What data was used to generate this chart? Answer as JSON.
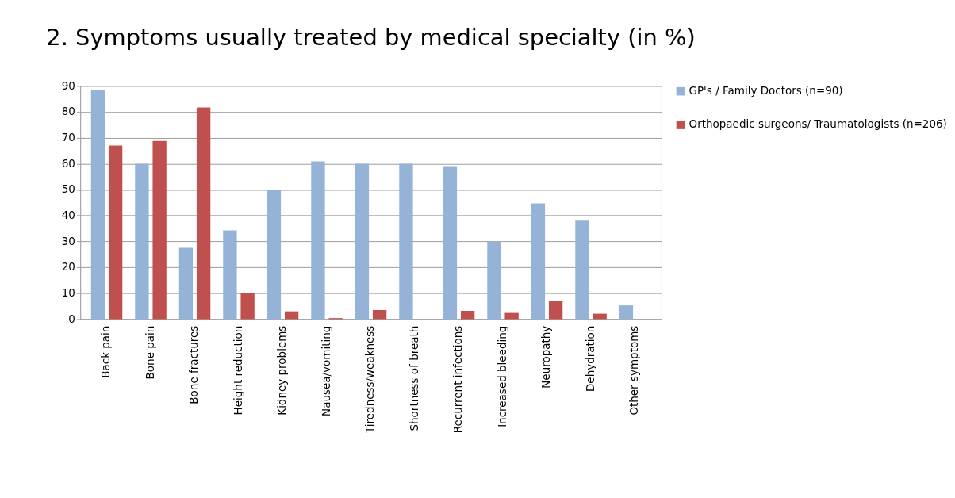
{
  "chart_data": {
    "type": "bar",
    "title": "2. Symptoms usually treated by medical specialty (in %)",
    "categories": [
      "Back pain",
      "Bone pain",
      "Bone fractures",
      "Height reduction",
      "Kidney problems",
      "Nausea/vomiting",
      "Tiredness/weakness",
      "Shortness of breath",
      "Recurrent infections",
      "Increased bleeding",
      "Neuropathy",
      "Dehydration",
      "Other symptoms"
    ],
    "series": [
      {
        "name": "GP's / Family Doctors (n=90)",
        "color": "#95b3d7",
        "values": [
          88.5,
          60,
          27.5,
          34.3,
          50,
          60.9,
          60,
          60,
          59.1,
          30,
          44.7,
          38,
          5.3
        ]
      },
      {
        "name": "Orthopaedic surgeons/ Traumatologists (n=206)",
        "color": "#c0504d",
        "values": [
          67,
          68.8,
          81.7,
          10,
          3,
          0.4,
          3.5,
          0,
          3.2,
          2.4,
          7.1,
          2.1,
          0
        ]
      }
    ],
    "ylim": [
      0,
      90
    ],
    "yticks": [
      0,
      10,
      20,
      30,
      40,
      50,
      60,
      70,
      80,
      90
    ],
    "grid": "y",
    "legend": "right"
  }
}
